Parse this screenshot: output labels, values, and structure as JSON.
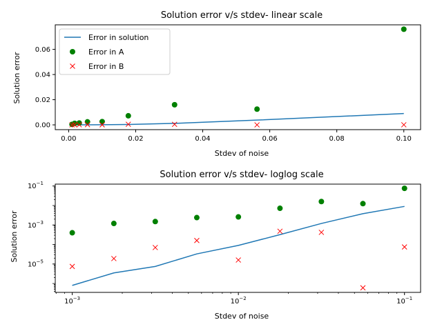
{
  "chart_data": [
    {
      "type": "line",
      "title": "Solution error v/s stdev- linear scale",
      "xlabel": "Stdev of noise",
      "ylabel": "Solution error",
      "xscale": "linear",
      "yscale": "linear",
      "xlim": [
        -0.004,
        0.105
      ],
      "ylim": [
        -0.0038,
        0.0795
      ],
      "xticks": [
        0.0,
        0.02,
        0.04,
        0.06,
        0.08,
        0.1
      ],
      "xtick_labels": [
        "0.00",
        "0.02",
        "0.04",
        "0.06",
        "0.08",
        "0.10"
      ],
      "yticks": [
        0.0,
        0.02,
        0.04,
        0.06
      ],
      "ytick_labels": [
        "0.00",
        "0.02",
        "0.04",
        "0.06"
      ],
      "grid": false,
      "legend": "top-left",
      "x": [
        0.001,
        0.00178,
        0.00316,
        0.00562,
        0.01,
        0.0178,
        0.0316,
        0.0562,
        0.1
      ],
      "series": [
        {
          "name": "Error in solution",
          "style": "line",
          "color": "#1f77b4",
          "values": [
            8e-07,
            3.5e-06,
            7.5e-06,
            3.3e-05,
            9e-05,
            0.00032,
            0.0012,
            0.0038,
            0.009
          ]
        },
        {
          "name": "Error in A",
          "style": "circle",
          "color": "#008000",
          "values": [
            0.0004,
            0.0012,
            0.0015,
            0.0024,
            0.0026,
            0.0072,
            0.016,
            0.0125,
            0.076
          ]
        },
        {
          "name": "Error in B",
          "style": "x",
          "color": "#ff0000",
          "values": [
            7.5e-06,
            1.9e-05,
            7e-05,
            0.00016,
            1.6e-05,
            0.00048,
            0.00042,
            6e-07,
            7.5e-05
          ]
        }
      ]
    },
    {
      "type": "line",
      "title": "Solution error v/s stdev- loglog scale",
      "xlabel": "Stdev of noise",
      "ylabel": "Solution error",
      "xscale": "log",
      "yscale": "log",
      "xlim": [
        0.00079,
        0.125
      ],
      "ylim": [
        3.5e-07,
        0.125
      ],
      "xticks": [
        0.001,
        0.01,
        0.1
      ],
      "xtick_labels": [
        "10",
        "10",
        "10"
      ],
      "xtick_exps": [
        "−3",
        "−2",
        "−1"
      ],
      "yticks": [
        1e-05,
        0.001,
        0.1
      ],
      "ytick_labels": [
        "10",
        "10",
        "10"
      ],
      "ytick_exps": [
        "−5",
        "−3",
        "−1"
      ],
      "grid": false,
      "x": [
        0.001,
        0.00178,
        0.00316,
        0.00562,
        0.01,
        0.0178,
        0.0316,
        0.0562,
        0.1
      ],
      "series": [
        {
          "name": "Error in solution",
          "style": "line",
          "color": "#1f77b4",
          "values": [
            8e-07,
            3.5e-06,
            7.5e-06,
            3.3e-05,
            9e-05,
            0.00032,
            0.0012,
            0.0038,
            0.009
          ]
        },
        {
          "name": "Error in A",
          "style": "circle",
          "color": "#008000",
          "values": [
            0.0004,
            0.0012,
            0.0015,
            0.0024,
            0.0026,
            0.0072,
            0.016,
            0.0125,
            0.076
          ]
        },
        {
          "name": "Error in B",
          "style": "x",
          "color": "#ff0000",
          "values": [
            7.5e-06,
            1.9e-05,
            7e-05,
            0.00016,
            1.6e-05,
            0.00048,
            0.00042,
            6e-07,
            7.5e-05
          ]
        }
      ]
    }
  ]
}
